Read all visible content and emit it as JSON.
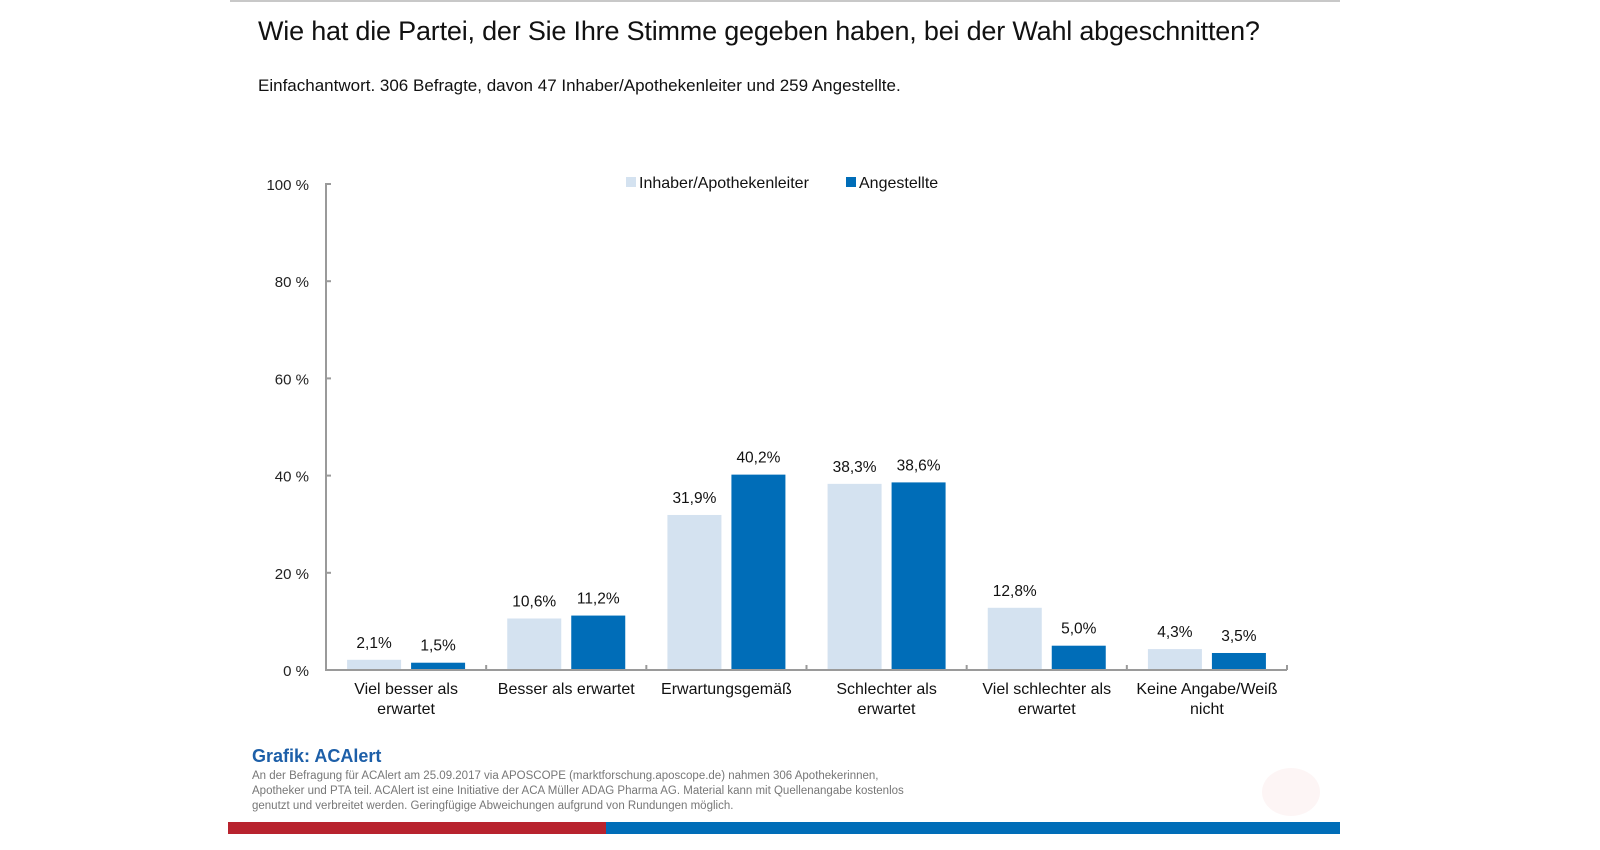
{
  "header": {
    "title": "Wie hat die Partei, der Sie Ihre Stimme gegeben haben, bei der Wahl abgeschnitten?",
    "subtitle": "Einfachantwort. 306 Befragte, davon 47 Inhaber/Apothekenleiter und 259 Angestellte."
  },
  "colors": {
    "series_light": "#d4e2f0",
    "series_dark": "#006db8",
    "axis": "#9a9a9a",
    "footer_red": "#b8232e",
    "footer_blue": "#006db8",
    "source_title": "#1d5fa8"
  },
  "chart_data": {
    "type": "bar",
    "title": "Wie hat die Partei, der Sie Ihre Stimme gegeben haben, bei der Wahl abgeschnitten?",
    "xlabel": "",
    "ylabel": "",
    "ylim": [
      0,
      100
    ],
    "yticks": [
      0,
      20,
      40,
      60,
      80,
      100
    ],
    "ytick_labels": [
      "0 %",
      "20 %",
      "40 %",
      "60 %",
      "80 %",
      "100 %"
    ],
    "grid": false,
    "legend_position": "top-center",
    "categories": [
      [
        "Viel besser als",
        "erwartet"
      ],
      [
        "Besser als erwartet"
      ],
      [
        "Erwartungsgemäß"
      ],
      [
        "Schlechter als",
        "erwartet"
      ],
      [
        "Viel schlechter als",
        "erwartet"
      ],
      [
        "Keine Angabe/Weiß",
        "nicht"
      ]
    ],
    "series": [
      {
        "name": "Inhaber/Apothekenleiter",
        "values": [
          2.1,
          10.6,
          31.9,
          38.3,
          12.8,
          4.3
        ],
        "labels": [
          "2,1%",
          "10,6%",
          "31,9%",
          "38,3%",
          "12,8%",
          "4,3%"
        ]
      },
      {
        "name": "Angestellte",
        "values": [
          1.5,
          11.2,
          40.2,
          38.6,
          5.0,
          3.5
        ],
        "labels": [
          "1,5%",
          "11,2%",
          "40,2%",
          "38,6%",
          "5,0%",
          "3,5%"
        ]
      }
    ]
  },
  "footer": {
    "source_title": "Grafik: ACAlert",
    "source_text": "An der Befragung für ACAlert am 25.09.2017 via APOSCOPE (marktforschung.aposcope.de) nahmen 306 Apothekerinnen, Apotheker und PTA teil. ACAlert ist eine Initiative der ACA Müller ADAG Pharma AG. Material kann mit Quellenangabe kostenlos genutzt und verbreitet werden. Geringfügige Abweichungen aufgrund von Rundungen möglich."
  }
}
